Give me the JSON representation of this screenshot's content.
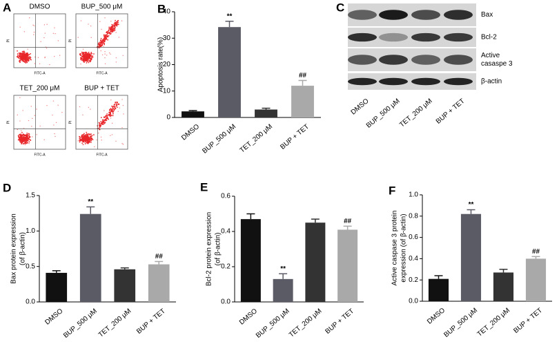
{
  "panel_labels": [
    "A",
    "B",
    "C",
    "D",
    "E",
    "F"
  ],
  "flow_cytometry": {
    "panels": [
      {
        "title": "DMSO"
      },
      {
        "title": "BUP_500 μM"
      },
      {
        "title": "TET_200 μM"
      },
      {
        "title": "BUP + TET"
      }
    ],
    "xlabel": "FITC-A",
    "ylabel": "PI"
  },
  "western_blot": {
    "proteins": [
      [
        "Bax"
      ],
      [
        "Bcl-2"
      ],
      [
        "Active",
        "casaspe 3"
      ],
      [
        "β-actin"
      ]
    ],
    "lanes": [
      "DMSO",
      "BUP_500 μM",
      "TET_200  μM",
      "BUP + TET"
    ]
  },
  "chart_data": [
    {
      "type": "bar",
      "ylabel": [
        "Apoptosis rate(%)"
      ],
      "categories": [
        "DMSO",
        "BUP_500 μM",
        "TET_200  μM",
        "BUP + TET"
      ],
      "values": [
        2.3,
        34.2,
        3.0,
        12.0
      ],
      "errors": [
        0.3,
        2.2,
        0.5,
        2.0
      ],
      "value_annotations": [
        null,
        "**",
        null,
        "##"
      ],
      "colors": [
        "#111111",
        "#5b5b66",
        "#333333",
        "#a9a9a9"
      ],
      "ylim": [
        0,
        40
      ],
      "yticks": [
        0,
        10,
        20,
        30,
        40
      ]
    },
    {
      "type": "bar",
      "ylabel": [
        "Bax protein expression",
        "(of β-actin)"
      ],
      "categories": [
        "DMSO",
        "BUP_500 μM",
        "TET_200  μM",
        "BUP + TET"
      ],
      "values": [
        0.41,
        1.24,
        0.46,
        0.53
      ],
      "errors": [
        0.03,
        0.1,
        0.02,
        0.04
      ],
      "value_annotations": [
        null,
        "**",
        null,
        "##"
      ],
      "colors": [
        "#111111",
        "#5b5b66",
        "#333333",
        "#a9a9a9"
      ],
      "ylim": [
        0,
        1.5
      ],
      "yticks": [
        {
          "value": 0,
          "label": "0.0"
        },
        0.5,
        {
          "value": 1,
          "label": "1.0"
        },
        1.5
      ]
    },
    {
      "type": "bar",
      "ylabel": [
        "Bcl-2 protein expression",
        "(of β-actin)"
      ],
      "categories": [
        "DMSO",
        "BUP_500 μM",
        "TET_200  μM",
        "BUP + TET"
      ],
      "values": [
        0.47,
        0.13,
        0.45,
        0.41
      ],
      "errors": [
        0.03,
        0.03,
        0.02,
        0.02
      ],
      "value_annotations": [
        null,
        "**",
        null,
        "##"
      ],
      "colors": [
        "#111111",
        "#5b5b66",
        "#333333",
        "#a9a9a9"
      ],
      "ylim": [
        0,
        0.6
      ],
      "yticks": [
        {
          "value": 0,
          "label": "0.0"
        },
        0.2,
        0.4,
        0.6
      ]
    },
    {
      "type": "bar",
      "ylabel": [
        "Active caspase 3 protein",
        "expression (of β-actin)"
      ],
      "categories": [
        "DMSO",
        "BUP_500 μM",
        "TET_200  μM",
        "BUP + TET"
      ],
      "values": [
        0.21,
        0.82,
        0.27,
        0.4
      ],
      "errors": [
        0.03,
        0.04,
        0.03,
        0.02
      ],
      "value_annotations": [
        null,
        "**",
        null,
        "##"
      ],
      "colors": [
        "#111111",
        "#5b5b66",
        "#333333",
        "#a9a9a9"
      ],
      "ylim": [
        0,
        1.0
      ],
      "yticks": [
        {
          "value": 0,
          "label": "0.0"
        },
        0.2,
        0.4,
        0.6,
        0.8,
        {
          "value": 1,
          "label": "1.0"
        }
      ]
    }
  ]
}
